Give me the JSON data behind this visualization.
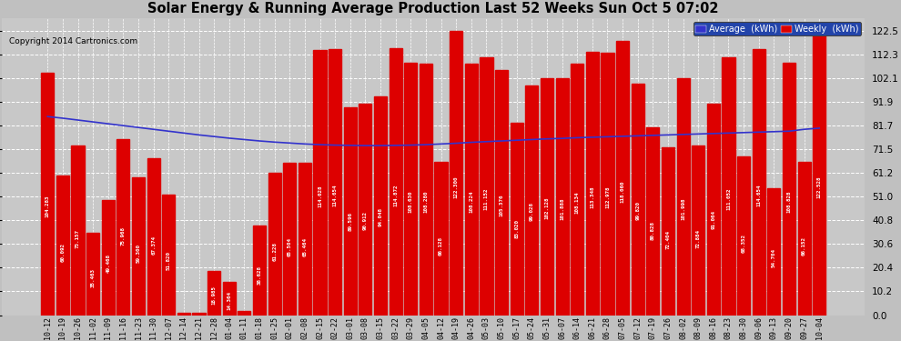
{
  "title": "Solar Energy & Running Average Production Last 52 Weeks Sun Oct 5 07:02",
  "copyright": "Copyright 2014 Cartronics.com",
  "bar_color": "#dd0000",
  "avg_line_color": "#3333cc",
  "background_color": "#c0c0c0",
  "plot_bg_color": "#c8c8c8",
  "yticks": [
    0.0,
    10.2,
    20.4,
    30.6,
    40.8,
    51.0,
    61.2,
    71.5,
    81.7,
    91.9,
    102.1,
    112.3,
    122.5
  ],
  "legend_avg_color": "#3333cc",
  "legend_weekly_color": "#dd0000",
  "categories": [
    "10-12",
    "10-19",
    "10-26",
    "11-02",
    "11-09",
    "11-16",
    "11-23",
    "11-30",
    "12-07",
    "12-14",
    "12-21",
    "12-28",
    "01-04",
    "01-11",
    "01-18",
    "01-25",
    "02-01",
    "02-08",
    "02-15",
    "02-22",
    "03-01",
    "03-08",
    "03-15",
    "03-22",
    "03-29",
    "04-05",
    "04-12",
    "04-19",
    "04-26",
    "05-03",
    "05-10",
    "05-17",
    "05-24",
    "05-31",
    "06-07",
    "06-14",
    "06-21",
    "06-28",
    "07-05",
    "07-12",
    "07-19",
    "07-26",
    "08-02",
    "08-09",
    "08-16",
    "08-23",
    "08-30",
    "09-06",
    "09-13",
    "09-20",
    "09-27",
    "10-04"
  ],
  "weekly_values": [
    104.283,
    60.092,
    73.157,
    35.463,
    49.468,
    75.968,
    59.3,
    67.374,
    51.82,
    1.053,
    1.092,
    18.985,
    14.364,
    1.752,
    38.628,
    61.228,
    65.504,
    65.464,
    114.028,
    114.654,
    89.596,
    90.912,
    94.048,
    114.872,
    108.63,
    108.28,
    66.128,
    122.3,
    108.224,
    111.152,
    105.376,
    83.02,
    99.028,
    102.128,
    101.888,
    108.134,
    113.348,
    112.978,
    118.06,
    99.82,
    80.828,
    72.404,
    101.998,
    72.884,
    91.064,
    111.052,
    68.352,
    114.654,
    54.704,
    108.828,
    66.152,
    122.528
  ],
  "avg_values": [
    85.5,
    84.8,
    84.0,
    83.2,
    82.4,
    81.6,
    80.8,
    80.0,
    79.2,
    78.4,
    77.6,
    76.9,
    76.2,
    75.6,
    75.0,
    74.5,
    74.1,
    73.7,
    73.4,
    73.2,
    73.1,
    73.0,
    73.0,
    73.1,
    73.2,
    73.4,
    73.7,
    74.0,
    74.4,
    74.7,
    75.0,
    75.3,
    75.6,
    75.9,
    76.1,
    76.4,
    76.6,
    76.8,
    77.0,
    77.2,
    77.4,
    77.6,
    77.8,
    78.0,
    78.2,
    78.4,
    78.6,
    78.8,
    79.0,
    79.2,
    80.0,
    80.5
  ],
  "ylim_max": 128.0,
  "bar_width": 0.85
}
